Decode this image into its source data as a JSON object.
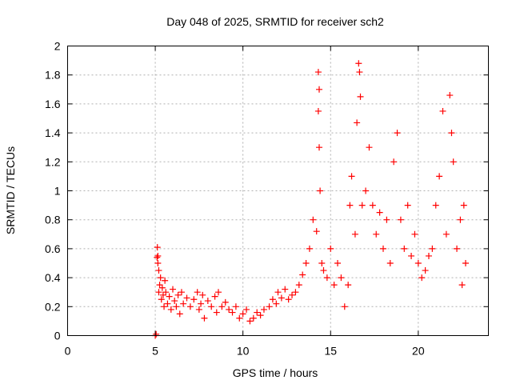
{
  "chart_data": {
    "type": "scatter",
    "title": "Day 048 of 2025, SRMTID for receiver sch2",
    "xlabel": "GPS time / hours",
    "ylabel": "SRMTID / TECUs",
    "xlim": [
      0,
      24
    ],
    "ylim": [
      0,
      2
    ],
    "xticks": [
      0,
      5,
      10,
      15,
      20
    ],
    "yticks": [
      0,
      0.2,
      0.4,
      0.6,
      0.8,
      1,
      1.2,
      1.4,
      1.6,
      1.8,
      2
    ],
    "grid": true,
    "marker": "+",
    "color": "#ff0000",
    "series": [
      {
        "name": "sch2",
        "points": [
          [
            5.0,
            0.0
          ],
          [
            5.05,
            0.01
          ],
          [
            5.1,
            0.54
          ],
          [
            5.12,
            0.61
          ],
          [
            5.15,
            0.55
          ],
          [
            5.15,
            0.5
          ],
          [
            5.2,
            0.45
          ],
          [
            5.2,
            0.3
          ],
          [
            5.25,
            0.35
          ],
          [
            5.3,
            0.4
          ],
          [
            5.35,
            0.25
          ],
          [
            5.4,
            0.33
          ],
          [
            5.45,
            0.28
          ],
          [
            5.5,
            0.2
          ],
          [
            5.55,
            0.38
          ],
          [
            5.6,
            0.3
          ],
          [
            5.7,
            0.22
          ],
          [
            5.8,
            0.27
          ],
          [
            5.9,
            0.18
          ],
          [
            6.0,
            0.32
          ],
          [
            6.1,
            0.24
          ],
          [
            6.2,
            0.2
          ],
          [
            6.3,
            0.28
          ],
          [
            6.4,
            0.15
          ],
          [
            6.5,
            0.3
          ],
          [
            6.6,
            0.22
          ],
          [
            6.8,
            0.26
          ],
          [
            7.0,
            0.2
          ],
          [
            7.2,
            0.25
          ],
          [
            7.4,
            0.3
          ],
          [
            7.5,
            0.18
          ],
          [
            7.6,
            0.22
          ],
          [
            7.7,
            0.28
          ],
          [
            7.8,
            0.12
          ],
          [
            8.0,
            0.24
          ],
          [
            8.2,
            0.2
          ],
          [
            8.4,
            0.27
          ],
          [
            8.5,
            0.16
          ],
          [
            8.6,
            0.3
          ],
          [
            8.8,
            0.2
          ],
          [
            9.0,
            0.23
          ],
          [
            9.2,
            0.18
          ],
          [
            9.4,
            0.16
          ],
          [
            9.6,
            0.2
          ],
          [
            9.8,
            0.12
          ],
          [
            10.0,
            0.15
          ],
          [
            10.2,
            0.18
          ],
          [
            10.4,
            0.1
          ],
          [
            10.6,
            0.12
          ],
          [
            10.8,
            0.16
          ],
          [
            11.0,
            0.14
          ],
          [
            11.2,
            0.18
          ],
          [
            11.5,
            0.2
          ],
          [
            11.7,
            0.25
          ],
          [
            11.9,
            0.22
          ],
          [
            12.0,
            0.3
          ],
          [
            12.2,
            0.26
          ],
          [
            12.4,
            0.32
          ],
          [
            12.6,
            0.25
          ],
          [
            12.8,
            0.28
          ],
          [
            13.0,
            0.3
          ],
          [
            13.2,
            0.35
          ],
          [
            13.4,
            0.42
          ],
          [
            13.6,
            0.5
          ],
          [
            13.8,
            0.6
          ],
          [
            14.0,
            0.8
          ],
          [
            14.2,
            0.72
          ],
          [
            14.3,
            1.82
          ],
          [
            14.35,
            1.7
          ],
          [
            14.3,
            1.55
          ],
          [
            14.35,
            1.3
          ],
          [
            14.4,
            1.0
          ],
          [
            14.5,
            0.5
          ],
          [
            14.6,
            0.45
          ],
          [
            14.8,
            0.4
          ],
          [
            15.0,
            0.6
          ],
          [
            15.2,
            0.35
          ],
          [
            15.4,
            0.5
          ],
          [
            15.6,
            0.4
          ],
          [
            15.8,
            0.2
          ],
          [
            16.0,
            0.35
          ],
          [
            16.1,
            0.9
          ],
          [
            16.2,
            1.1
          ],
          [
            16.4,
            0.7
          ],
          [
            16.5,
            1.47
          ],
          [
            16.6,
            1.88
          ],
          [
            16.65,
            1.82
          ],
          [
            16.7,
            1.65
          ],
          [
            16.8,
            0.9
          ],
          [
            17.0,
            1.0
          ],
          [
            17.2,
            1.3
          ],
          [
            17.4,
            0.9
          ],
          [
            17.6,
            0.7
          ],
          [
            17.8,
            0.85
          ],
          [
            18.0,
            0.6
          ],
          [
            18.2,
            0.8
          ],
          [
            18.4,
            0.5
          ],
          [
            18.6,
            1.2
          ],
          [
            18.8,
            1.4
          ],
          [
            19.0,
            0.8
          ],
          [
            19.2,
            0.6
          ],
          [
            19.4,
            0.9
          ],
          [
            19.6,
            0.55
          ],
          [
            19.8,
            0.7
          ],
          [
            20.0,
            0.5
          ],
          [
            20.2,
            0.4
          ],
          [
            20.4,
            0.45
          ],
          [
            20.6,
            0.55
          ],
          [
            20.8,
            0.6
          ],
          [
            21.0,
            0.9
          ],
          [
            21.2,
            1.1
          ],
          [
            21.4,
            1.55
          ],
          [
            21.6,
            0.7
          ],
          [
            21.8,
            1.66
          ],
          [
            21.9,
            1.4
          ],
          [
            22.0,
            1.2
          ],
          [
            22.2,
            0.6
          ],
          [
            22.4,
            0.8
          ],
          [
            22.5,
            0.35
          ],
          [
            22.6,
            0.9
          ],
          [
            22.7,
            0.5
          ]
        ]
      }
    ]
  }
}
